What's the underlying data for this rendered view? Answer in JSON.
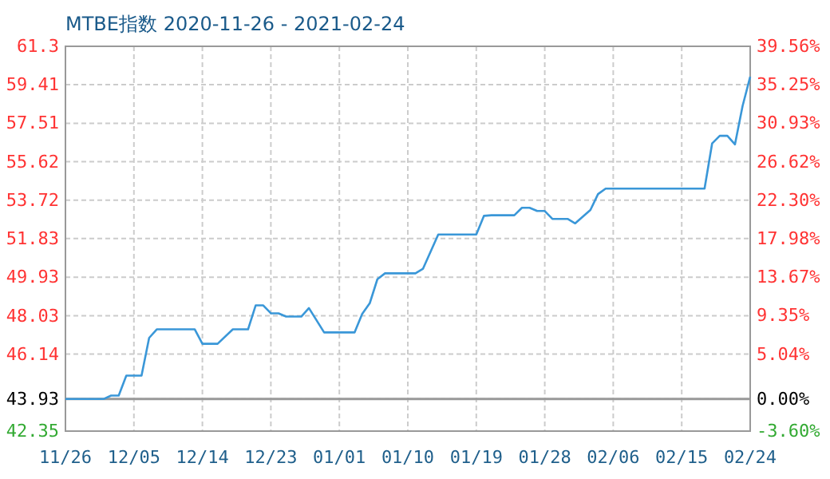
{
  "chart_data": {
    "type": "line",
    "title": "MTBE指数 2020-11-26 - 2021-02-24",
    "x": [
      "2020-11-26",
      "2020-12-01",
      "2020-12-02",
      "2020-12-03",
      "2020-12-04",
      "2020-12-06",
      "2020-12-07",
      "2020-12-08",
      "2020-12-13",
      "2020-12-14",
      "2020-12-16",
      "2020-12-18",
      "2020-12-20",
      "2020-12-21",
      "2020-12-22",
      "2020-12-23",
      "2020-12-24",
      "2020-12-25",
      "2020-12-27",
      "2020-12-28",
      "2020-12-30",
      "2021-01-03",
      "2021-01-04",
      "2021-01-05",
      "2021-01-06",
      "2021-01-07",
      "2021-01-11",
      "2021-01-12",
      "2021-01-14",
      "2021-01-19",
      "2021-01-20",
      "2021-01-21",
      "2021-01-24",
      "2021-01-25",
      "2021-01-26",
      "2021-01-27",
      "2021-01-28",
      "2021-01-29",
      "2021-01-31",
      "2021-02-01",
      "2021-02-03",
      "2021-02-04",
      "2021-02-05",
      "2021-02-18",
      "2021-02-19",
      "2021-02-20",
      "2021-02-21",
      "2021-02-22",
      "2021-02-23",
      "2021-02-24"
    ],
    "series": [
      {
        "color": "#3a97d8",
        "values": [
          43.93,
          43.93,
          44.1,
          44.1,
          45.08,
          45.08,
          46.94,
          47.36,
          47.36,
          46.65,
          46.65,
          47.36,
          47.36,
          48.54,
          48.54,
          48.15,
          48.15,
          47.99,
          47.99,
          48.41,
          47.21,
          47.21,
          48.12,
          48.65,
          49.83,
          50.12,
          50.12,
          50.35,
          52.03,
          52.03,
          52.95,
          52.98,
          52.98,
          53.35,
          53.35,
          53.19,
          53.19,
          52.8,
          52.8,
          52.58,
          53.24,
          54.02,
          54.29,
          54.29,
          56.52,
          56.89,
          56.89,
          56.47,
          58.36,
          59.8
        ]
      }
    ],
    "xlim": [
      "2020-11-26",
      "2021-02-24"
    ],
    "xticks": [
      {
        "value": "2020-11-26",
        "label": "11/26"
      },
      {
        "value": "2020-12-05",
        "label": "12/05"
      },
      {
        "value": "2020-12-14",
        "label": "12/14"
      },
      {
        "value": "2020-12-23",
        "label": "12/23"
      },
      {
        "value": "2021-01-01",
        "label": "01/01"
      },
      {
        "value": "2021-01-10",
        "label": "01/10"
      },
      {
        "value": "2021-01-19",
        "label": "01/19"
      },
      {
        "value": "2021-01-28",
        "label": "01/28"
      },
      {
        "value": "2021-02-06",
        "label": "02/06"
      },
      {
        "value": "2021-02-15",
        "label": "02/15"
      },
      {
        "value": "2021-02-24",
        "label": "02/24"
      }
    ],
    "ylim": [
      42.35,
      61.3
    ],
    "yticks": [
      42.35,
      43.93,
      46.14,
      48.03,
      49.93,
      51.83,
      53.72,
      55.62,
      57.51,
      59.41,
      61.3
    ],
    "y2lim": [
      -3.6,
      39.56
    ],
    "y2ticks": [
      {
        "value": -3.6,
        "label": "-3.60%"
      },
      {
        "value": 0,
        "label": "0.00%"
      },
      {
        "value": 5.04,
        "label": "5.04%"
      },
      {
        "value": 9.35,
        "label": "9.35%"
      },
      {
        "value": 13.67,
        "label": "13.67%"
      },
      {
        "value": 17.98,
        "label": "17.98%"
      },
      {
        "value": 22.3,
        "label": "22.30%"
      },
      {
        "value": 26.62,
        "label": "26.62%"
      },
      {
        "value": 30.93,
        "label": "30.93%"
      },
      {
        "value": 35.25,
        "label": "35.25%"
      },
      {
        "value": 39.56,
        "label": "39.56%"
      }
    ],
    "ref_lines": [
      {
        "axis": "y",
        "value": 43.93,
        "color": "#999999"
      }
    ],
    "grid": true,
    "line_style": "solid"
  }
}
